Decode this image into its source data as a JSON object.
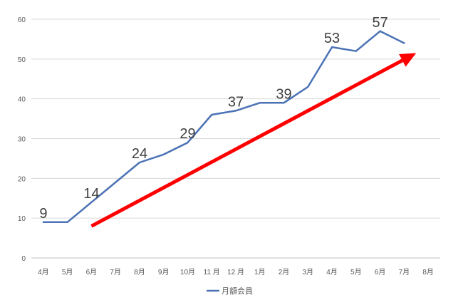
{
  "chart_data": {
    "type": "line",
    "categories": [
      "4月",
      "5月",
      "6月",
      "7月",
      "8月",
      "9月",
      "10月",
      "11 月",
      "12 月",
      "1月",
      "2月",
      "3月",
      "4月",
      "5月",
      "6月",
      "7月",
      "8月"
    ],
    "series": [
      {
        "name": "月額会員",
        "values": [
          9,
          9,
          14,
          19,
          24,
          26,
          29,
          36,
          37,
          39,
          39,
          43,
          53,
          52,
          57,
          54,
          null
        ],
        "color": "#4a72b5"
      }
    ],
    "data_labels": [
      {
        "index": 0,
        "text": "9"
      },
      {
        "index": 2,
        "text": "14"
      },
      {
        "index": 4,
        "text": "24"
      },
      {
        "index": 6,
        "text": "29"
      },
      {
        "index": 8,
        "text": "37"
      },
      {
        "index": 10,
        "text": "39"
      },
      {
        "index": 12,
        "text": "53"
      },
      {
        "index": 14,
        "text": "57"
      }
    ],
    "yticks": [
      0,
      10,
      20,
      30,
      40,
      50,
      60
    ],
    "ylim": [
      0,
      60
    ],
    "grid": true,
    "legend": "bottom",
    "trend_arrow": {
      "from_index": 2,
      "from_value": 8,
      "to_index": 15.5,
      "to_value": 51.5,
      "color": "#ff0000"
    }
  }
}
